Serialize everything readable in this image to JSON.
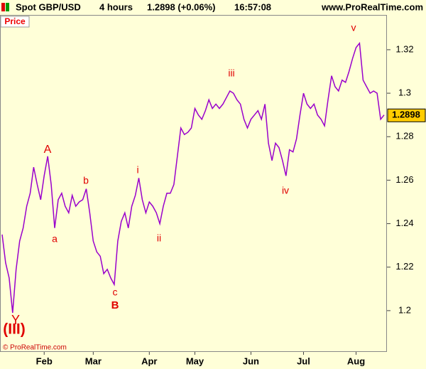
{
  "chart_data": {
    "type": "line",
    "title": "Spot GBP/USD",
    "timeframe": "4 hours",
    "price_change": "1.2898 (+0.06%)",
    "time": "16:57:08",
    "source": "www.ProRealTime.com",
    "copyright": "© ProRealTime.com",
    "last_value": 1.2898,
    "categories": [
      null,
      null,
      null,
      null,
      null,
      null,
      null,
      null,
      null,
      null,
      null,
      null,
      "Feb",
      null,
      null,
      null,
      null,
      null,
      null,
      null,
      null,
      null,
      null,
      null,
      null,
      null,
      "Mar",
      null,
      null,
      null,
      null,
      null,
      null,
      null,
      null,
      null,
      null,
      null,
      null,
      null,
      null,
      null,
      "Apr",
      null,
      null,
      null,
      null,
      null,
      null,
      null,
      null,
      null,
      null,
      null,
      null,
      "May",
      null,
      null,
      null,
      null,
      null,
      null,
      null,
      null,
      null,
      null,
      null,
      null,
      null,
      null,
      null,
      "Jun",
      null,
      null,
      null,
      null,
      null,
      null,
      null,
      null,
      null,
      null,
      null,
      null,
      null,
      null,
      "Jul",
      null,
      null,
      null,
      null,
      null,
      null,
      null,
      null,
      null,
      null,
      null,
      null,
      null,
      null,
      "Aug",
      null,
      null,
      null,
      null,
      null,
      null,
      null,
      null
    ],
    "series": [
      {
        "name": "Price",
        "color": "#9900cc",
        "values": [
          1.235,
          1.222,
          1.215,
          1.199,
          1.219,
          1.232,
          1.238,
          1.248,
          1.254,
          1.266,
          1.258,
          1.251,
          1.262,
          1.271,
          1.258,
          1.238,
          1.251,
          1.254,
          1.248,
          1.245,
          1.253,
          1.248,
          1.25,
          1.251,
          1.256,
          1.245,
          1.232,
          1.227,
          1.225,
          1.217,
          1.219,
          1.215,
          1.212,
          1.232,
          1.241,
          1.245,
          1.238,
          1.248,
          1.253,
          1.261,
          1.251,
          1.245,
          1.25,
          1.248,
          1.245,
          1.24,
          1.248,
          1.254,
          1.254,
          1.258,
          1.271,
          1.284,
          1.281,
          1.282,
          1.284,
          1.293,
          1.29,
          1.288,
          1.292,
          1.297,
          1.293,
          1.295,
          1.293,
          1.295,
          1.298,
          1.301,
          1.3,
          1.297,
          1.295,
          1.288,
          1.284,
          1.288,
          1.29,
          1.292,
          1.288,
          1.295,
          1.277,
          1.269,
          1.277,
          1.275,
          1.269,
          1.262,
          1.274,
          1.273,
          1.279,
          1.29,
          1.3,
          1.295,
          1.293,
          1.295,
          1.29,
          1.288,
          1.285,
          1.297,
          1.308,
          1.303,
          1.301,
          1.306,
          1.305,
          1.31,
          1.316,
          1.321,
          1.323,
          1.306,
          1.303,
          1.3,
          1.301,
          1.3,
          1.288,
          1.29
        ]
      }
    ],
    "ylim": [
      1.181,
      1.336
    ],
    "yticks": [
      1.2,
      1.22,
      1.24,
      1.26,
      1.28,
      1.3,
      1.32
    ],
    "grid": false,
    "annotations": [
      "A",
      "b",
      "a",
      "c",
      "B",
      "i",
      "ii",
      "iii",
      "iv",
      "v",
      "Y",
      "(III)"
    ]
  }
}
